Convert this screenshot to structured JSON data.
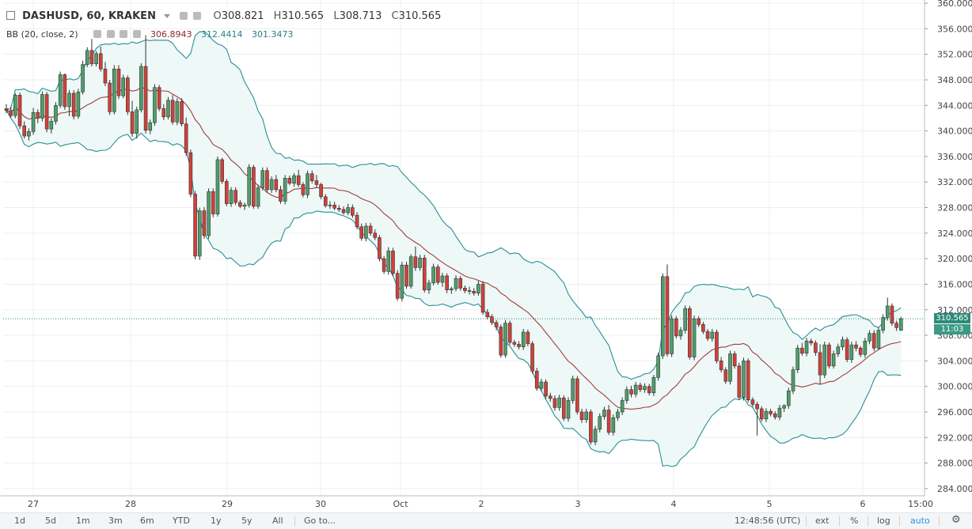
{
  "symbol": {
    "title": "DASHUSD, 60, KRAKEN",
    "open_label": "O",
    "open": "308.821",
    "high_label": "H",
    "high": "310.565",
    "low_label": "L",
    "low": "308.713",
    "close_label": "C",
    "close": "310.565"
  },
  "indicator": {
    "label": "BB (20, close, 2)",
    "basis": "306.8943",
    "upper": "312.4414",
    "lower": "301.3473"
  },
  "price_tag": {
    "last": "310.565",
    "countdown": "11:03"
  },
  "toolbar": {
    "timeframes": [
      "1d",
      "5d",
      "1m",
      "3m",
      "6m",
      "YTD",
      "1y",
      "5y",
      "All"
    ],
    "goto": "Go to...",
    "clock": "12:48:56 (UTC)",
    "ext": "ext",
    "percent": "%",
    "log": "log",
    "auto": "auto"
  },
  "colors": {
    "up": "#4f9e6a",
    "down": "#d2403a",
    "band": "#2a8e98",
    "band_fill": "#eef8f7",
    "basis": "#a33b3b",
    "grid": "#eceff3"
  },
  "chart_data": {
    "type": "candlestick",
    "title": "DASHUSD, 60, KRAKEN",
    "y_ticks": [
      "360.000",
      "356.000",
      "352.000",
      "348.000",
      "344.000",
      "340.000",
      "336.000",
      "332.000",
      "328.000",
      "324.000",
      "320.000",
      "316.000",
      "312.000",
      "308.000",
      "304.000",
      "300.000",
      "296.000",
      "292.000",
      "288.000",
      "284.000"
    ],
    "x_ticks": [
      "27",
      "28",
      "29",
      "30",
      "Oct",
      "2",
      "3",
      "4",
      "5",
      "6",
      "15:00"
    ],
    "ylim": [
      283,
      360.5
    ],
    "grid": true,
    "candles": [
      [
        343.5,
        344.2,
        342.8,
        343.2
      ],
      [
        343.2,
        343.8,
        342.1,
        342.4
      ],
      [
        342.4,
        345.9,
        342.0,
        345.6
      ],
      [
        345.6,
        346.0,
        340.3,
        340.8
      ],
      [
        340.8,
        341.5,
        338.8,
        339.2
      ],
      [
        339.2,
        340.4,
        338.5,
        339.9
      ],
      [
        339.9,
        343.6,
        339.4,
        342.9
      ],
      [
        342.9,
        343.4,
        341.2,
        342.0
      ],
      [
        342.0,
        346.2,
        341.5,
        345.7
      ],
      [
        345.7,
        346.1,
        339.8,
        340.3
      ],
      [
        340.3,
        342.0,
        339.6,
        341.5
      ],
      [
        341.5,
        344.5,
        341.0,
        344.0
      ],
      [
        344.0,
        349.3,
        343.6,
        348.8
      ],
      [
        348.8,
        349.0,
        343.3,
        343.8
      ],
      [
        343.8,
        346.4,
        342.3,
        345.9
      ],
      [
        345.9,
        346.4,
        341.8,
        342.3
      ],
      [
        342.3,
        346.6,
        341.9,
        346.1
      ],
      [
        346.1,
        351.0,
        345.7,
        350.4
      ],
      [
        350.4,
        353.1,
        350.0,
        352.6
      ],
      [
        352.6,
        354.4,
        350.1,
        350.5
      ],
      [
        350.5,
        352.5,
        350.1,
        352.1
      ],
      [
        352.1,
        353.2,
        349.3,
        349.7
      ],
      [
        349.7,
        350.8,
        347.0,
        347.5
      ],
      [
        347.5,
        348.0,
        342.5,
        343.0
      ],
      [
        343.0,
        350.3,
        342.6,
        349.7
      ],
      [
        349.7,
        350.3,
        345.0,
        345.5
      ],
      [
        345.5,
        348.8,
        345.1,
        348.3
      ],
      [
        348.3,
        348.7,
        342.5,
        343.0
      ],
      [
        343.0,
        344.7,
        339.1,
        339.6
      ],
      [
        339.6,
        343.8,
        338.8,
        343.3
      ],
      [
        343.3,
        350.6,
        342.9,
        350.1
      ],
      [
        350.1,
        355.0,
        339.6,
        340.1
      ],
      [
        340.1,
        341.8,
        339.5,
        341.3
      ],
      [
        341.3,
        347.3,
        340.8,
        346.8
      ],
      [
        346.8,
        347.2,
        343.1,
        343.5
      ],
      [
        343.5,
        344.2,
        341.7,
        342.2
      ],
      [
        342.2,
        345.3,
        341.8,
        344.8
      ],
      [
        344.8,
        345.6,
        341.0,
        341.4
      ],
      [
        341.4,
        345.1,
        340.9,
        344.6
      ],
      [
        344.6,
        345.1,
        340.7,
        341.1
      ],
      [
        341.1,
        342.1,
        336.1,
        336.6
      ],
      [
        336.6,
        337.1,
        329.6,
        330.1
      ],
      [
        330.1,
        330.6,
        319.9,
        320.4
      ],
      [
        320.4,
        328.0,
        319.8,
        327.5
      ],
      [
        327.5,
        328.1,
        323.1,
        323.6
      ],
      [
        323.6,
        331.0,
        323.1,
        330.5
      ],
      [
        330.5,
        331.0,
        326.5,
        327.0
      ],
      [
        327.0,
        336.0,
        326.6,
        335.5
      ],
      [
        335.5,
        335.8,
        331.7,
        332.1
      ],
      [
        332.1,
        332.5,
        328.2,
        328.6
      ],
      [
        328.6,
        331.2,
        328.1,
        330.7
      ],
      [
        330.7,
        331.2,
        328.4,
        328.8
      ],
      [
        328.8,
        329.2,
        327.9,
        328.2
      ],
      [
        328.2,
        328.8,
        327.6,
        328.4
      ],
      [
        328.4,
        334.8,
        328.0,
        334.3
      ],
      [
        334.3,
        334.7,
        327.8,
        328.2
      ],
      [
        328.2,
        331.6,
        327.8,
        331.1
      ],
      [
        331.1,
        334.3,
        330.7,
        333.8
      ],
      [
        333.8,
        334.3,
        330.4,
        330.8
      ],
      [
        330.8,
        332.9,
        330.3,
        332.4
      ],
      [
        332.4,
        333.1,
        330.4,
        330.8
      ],
      [
        330.8,
        331.4,
        328.6,
        329.0
      ],
      [
        329.0,
        333.1,
        328.5,
        332.6
      ],
      [
        332.6,
        333.0,
        331.5,
        331.8
      ],
      [
        331.8,
        333.4,
        331.3,
        333.0
      ],
      [
        333.0,
        333.9,
        331.2,
        331.6
      ],
      [
        331.6,
        332.0,
        329.6,
        330.0
      ],
      [
        330.0,
        333.8,
        329.5,
        333.3
      ],
      [
        333.3,
        333.8,
        331.8,
        332.2
      ],
      [
        332.2,
        333.1,
        331.1,
        331.6
      ],
      [
        331.6,
        331.9,
        329.3,
        329.7
      ],
      [
        329.7,
        330.1,
        328.0,
        328.3
      ],
      [
        328.3,
        329.0,
        327.8,
        328.4
      ],
      [
        328.4,
        328.9,
        327.6,
        327.9
      ],
      [
        327.9,
        328.4,
        327.3,
        327.7
      ],
      [
        327.7,
        328.2,
        326.9,
        327.2
      ],
      [
        327.2,
        328.6,
        326.8,
        328.0
      ],
      [
        328.0,
        328.5,
        326.4,
        326.8
      ],
      [
        326.8,
        327.3,
        324.6,
        325.0
      ],
      [
        325.0,
        325.5,
        322.8,
        323.2
      ],
      [
        323.2,
        325.6,
        322.7,
        325.1
      ],
      [
        325.1,
        325.6,
        323.6,
        324.0
      ],
      [
        324.0,
        324.6,
        322.9,
        323.3
      ],
      [
        323.3,
        323.7,
        319.6,
        320.0
      ],
      [
        320.0,
        320.4,
        317.6,
        318.0
      ],
      [
        318.0,
        321.8,
        317.5,
        321.2
      ],
      [
        321.2,
        321.7,
        317.3,
        317.7
      ],
      [
        317.7,
        318.2,
        313.4,
        313.8
      ],
      [
        313.8,
        319.5,
        313.3,
        319.0
      ],
      [
        319.0,
        319.5,
        315.3,
        315.7
      ],
      [
        315.7,
        320.7,
        315.3,
        320.3
      ],
      [
        320.3,
        321.9,
        318.1,
        318.6
      ],
      [
        318.6,
        320.6,
        318.1,
        320.1
      ],
      [
        320.1,
        320.6,
        314.7,
        315.1
      ],
      [
        315.1,
        316.7,
        314.5,
        316.2
      ],
      [
        316.2,
        319.2,
        315.8,
        318.7
      ],
      [
        318.7,
        319.1,
        315.9,
        316.3
      ],
      [
        316.3,
        317.8,
        315.6,
        317.3
      ],
      [
        317.3,
        317.7,
        314.6,
        315.1
      ],
      [
        315.1,
        315.6,
        314.5,
        315.3
      ],
      [
        315.3,
        317.4,
        314.9,
        316.9
      ],
      [
        316.9,
        317.3,
        315.0,
        315.4
      ],
      [
        315.4,
        315.8,
        314.6,
        315.0
      ],
      [
        315.0,
        315.6,
        314.4,
        314.9
      ],
      [
        314.9,
        315.4,
        314.2,
        314.6
      ],
      [
        314.6,
        316.5,
        314.2,
        316.0
      ],
      [
        316.0,
        316.5,
        311.2,
        311.6
      ],
      [
        311.6,
        312.1,
        310.5,
        310.9
      ],
      [
        310.9,
        311.3,
        309.6,
        310.0
      ],
      [
        310.0,
        310.4,
        308.8,
        309.3
      ],
      [
        309.3,
        309.7,
        304.5,
        304.9
      ],
      [
        304.9,
        310.4,
        304.5,
        309.9
      ],
      [
        309.9,
        310.3,
        306.5,
        306.9
      ],
      [
        306.9,
        307.3,
        306.2,
        306.6
      ],
      [
        306.6,
        307.1,
        305.8,
        306.2
      ],
      [
        306.2,
        309.0,
        305.7,
        308.5
      ],
      [
        308.5,
        308.9,
        306.3,
        306.7
      ],
      [
        306.7,
        307.1,
        302.0,
        302.4
      ],
      [
        302.4,
        302.9,
        299.3,
        299.7
      ],
      [
        299.7,
        301.2,
        299.2,
        300.7
      ],
      [
        300.7,
        301.1,
        298.0,
        298.5
      ],
      [
        298.5,
        299.0,
        297.6,
        298.1
      ],
      [
        298.1,
        298.6,
        296.2,
        296.7
      ],
      [
        296.7,
        298.7,
        296.2,
        298.2
      ],
      [
        298.2,
        298.6,
        294.6,
        295.0
      ],
      [
        295.0,
        298.3,
        294.5,
        297.8
      ],
      [
        297.8,
        301.7,
        297.3,
        301.2
      ],
      [
        301.2,
        301.6,
        295.6,
        296.0
      ],
      [
        296.0,
        296.5,
        294.3,
        294.8
      ],
      [
        294.8,
        296.5,
        294.3,
        296.0
      ],
      [
        296.0,
        296.4,
        290.9,
        291.3
      ],
      [
        291.3,
        293.8,
        290.8,
        293.3
      ],
      [
        293.3,
        295.8,
        292.8,
        295.3
      ],
      [
        295.3,
        296.8,
        294.8,
        296.3
      ],
      [
        296.3,
        297.1,
        292.4,
        292.8
      ],
      [
        292.8,
        295.6,
        292.3,
        295.1
      ],
      [
        295.1,
        296.5,
        294.6,
        296.0
      ],
      [
        296.0,
        298.3,
        295.5,
        297.8
      ],
      [
        297.8,
        300.0,
        297.3,
        299.5
      ],
      [
        299.5,
        300.1,
        298.3,
        298.8
      ],
      [
        298.8,
        300.7,
        298.3,
        300.2
      ],
      [
        300.2,
        300.6,
        299.1,
        299.5
      ],
      [
        299.5,
        300.5,
        299.0,
        300.0
      ],
      [
        300.0,
        300.4,
        298.6,
        299.0
      ],
      [
        299.0,
        301.8,
        298.5,
        301.4
      ],
      [
        301.4,
        305.3,
        300.9,
        304.8
      ],
      [
        304.8,
        317.7,
        304.3,
        317.2
      ],
      [
        317.2,
        319.1,
        304.7,
        305.1
      ],
      [
        305.1,
        311.1,
        304.6,
        310.6
      ],
      [
        310.6,
        311.0,
        307.5,
        307.9
      ],
      [
        307.9,
        309.3,
        307.3,
        308.8
      ],
      [
        308.8,
        312.7,
        308.3,
        312.2
      ],
      [
        312.2,
        312.6,
        304.2,
        304.6
      ],
      [
        304.6,
        311.1,
        304.1,
        310.6
      ],
      [
        310.6,
        311.0,
        309.3,
        309.7
      ],
      [
        309.7,
        310.1,
        308.2,
        308.6
      ],
      [
        308.6,
        309.0,
        307.1,
        307.5
      ],
      [
        307.5,
        309.0,
        307.0,
        308.5
      ],
      [
        308.5,
        308.9,
        303.6,
        304.0
      ],
      [
        304.0,
        304.6,
        302.2,
        302.6
      ],
      [
        302.6,
        303.0,
        300.4,
        300.8
      ],
      [
        300.8,
        305.6,
        300.3,
        305.1
      ],
      [
        305.1,
        305.5,
        302.8,
        303.2
      ],
      [
        303.2,
        303.7,
        297.9,
        298.3
      ],
      [
        298.3,
        304.5,
        297.8,
        304.0
      ],
      [
        304.0,
        304.4,
        297.5,
        297.9
      ],
      [
        297.9,
        298.3,
        296.8,
        297.2
      ],
      [
        297.2,
        297.6,
        292.3,
        296.5
      ],
      [
        296.5,
        296.9,
        294.5,
        294.9
      ],
      [
        294.9,
        296.6,
        294.4,
        296.1
      ],
      [
        296.1,
        296.5,
        295.3,
        295.7
      ],
      [
        295.7,
        296.1,
        294.8,
        295.2
      ],
      [
        295.2,
        297.1,
        294.7,
        296.6
      ],
      [
        296.6,
        297.2,
        296.0,
        297.0
      ],
      [
        297.0,
        299.8,
        296.5,
        299.3
      ],
      [
        299.3,
        303.1,
        298.8,
        302.6
      ],
      [
        302.6,
        306.5,
        302.1,
        306.0
      ],
      [
        306.0,
        306.8,
        304.8,
        305.2
      ],
      [
        305.2,
        307.6,
        304.7,
        307.1
      ],
      [
        307.1,
        307.5,
        306.4,
        306.8
      ],
      [
        306.8,
        307.2,
        304.8,
        305.3
      ],
      [
        305.3,
        306.6,
        300.3,
        301.8
      ],
      [
        301.8,
        307.0,
        301.3,
        306.5
      ],
      [
        306.5,
        306.9,
        302.8,
        303.2
      ],
      [
        303.2,
        305.6,
        302.8,
        305.1
      ],
      [
        305.1,
        306.7,
        304.6,
        306.2
      ],
      [
        306.2,
        307.8,
        305.7,
        307.3
      ],
      [
        307.3,
        307.7,
        303.8,
        304.2
      ],
      [
        304.2,
        307.0,
        303.7,
        306.5
      ],
      [
        306.5,
        307.1,
        305.5,
        306.0
      ],
      [
        306.0,
        306.3,
        304.6,
        305.0
      ],
      [
        305.0,
        307.6,
        304.5,
        307.1
      ],
      [
        307.1,
        308.8,
        306.6,
        308.3
      ],
      [
        308.3,
        308.8,
        305.5,
        306.0
      ],
      [
        306.0,
        309.3,
        305.7,
        308.8
      ],
      [
        308.8,
        311.3,
        308.3,
        310.8
      ],
      [
        310.8,
        313.9,
        310.3,
        312.6
      ],
      [
        312.6,
        313.0,
        309.5,
        309.9
      ],
      [
        309.9,
        310.3,
        308.7,
        309.2
      ],
      [
        308.8,
        310.9,
        308.7,
        310.6
      ]
    ],
    "bollinger": {
      "period": 20,
      "source": "close",
      "stddev": 2
    }
  }
}
